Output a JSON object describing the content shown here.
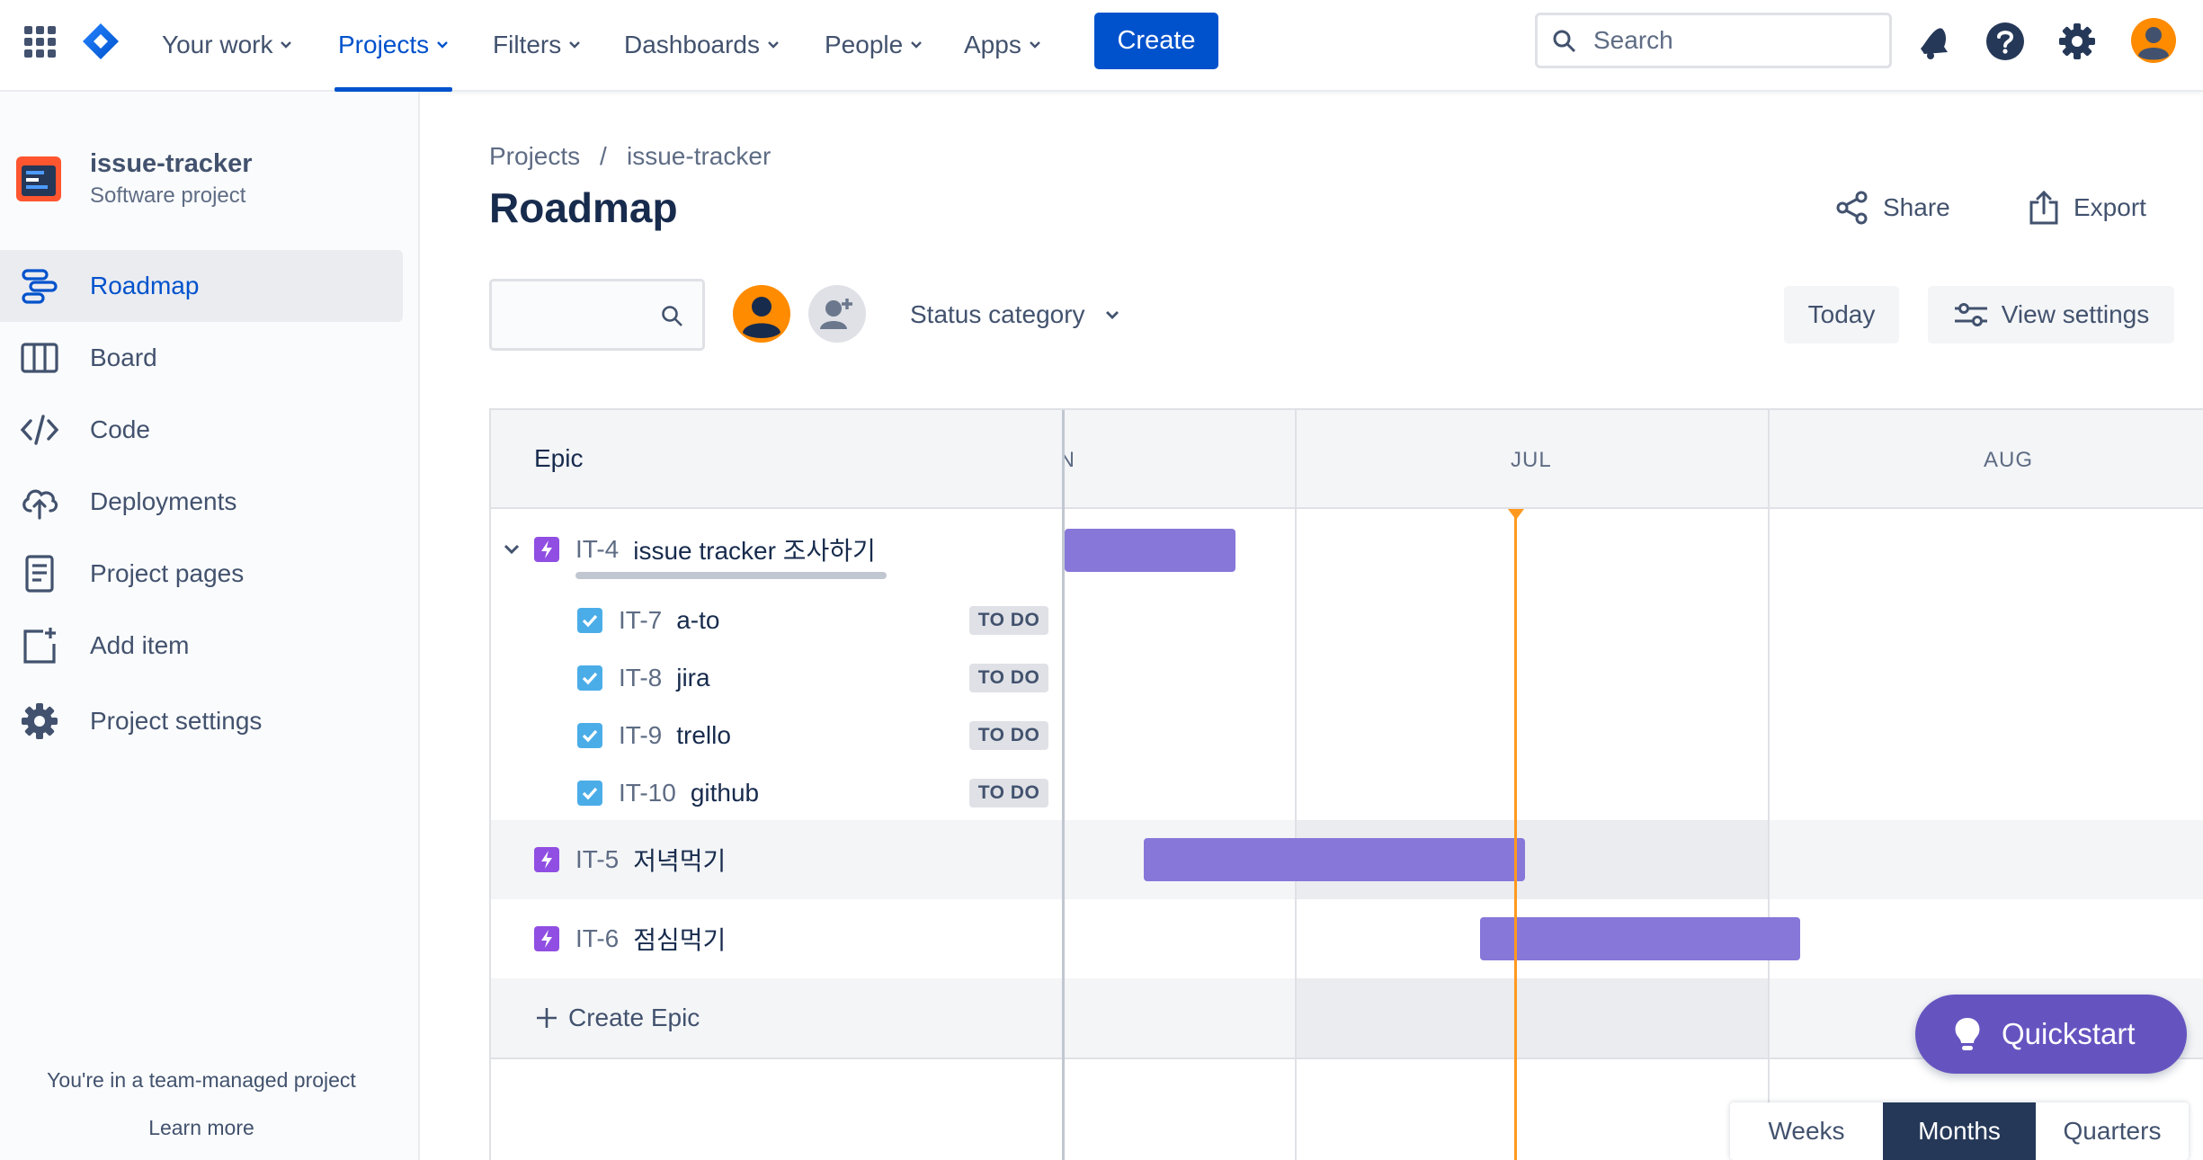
{
  "topnav": {
    "items": [
      "Your work",
      "Projects",
      "Filters",
      "Dashboards",
      "People",
      "Apps"
    ],
    "active": "Projects",
    "create_label": "Create",
    "search_placeholder": "Search"
  },
  "sidebar": {
    "project_name": "issue-tracker",
    "project_type": "Software project",
    "items": [
      {
        "label": "Roadmap",
        "icon": "roadmap-icon"
      },
      {
        "label": "Board",
        "icon": "board-icon"
      },
      {
        "label": "Code",
        "icon": "code-icon"
      },
      {
        "label": "Deployments",
        "icon": "cloud-upload-icon"
      },
      {
        "label": "Project pages",
        "icon": "page-icon"
      },
      {
        "label": "Add item",
        "icon": "add-item-icon"
      },
      {
        "label": "Project settings",
        "icon": "gear-icon"
      }
    ],
    "footer_text": "You're in a team-managed project",
    "footer_link": "Learn more"
  },
  "main": {
    "breadcrumb": [
      "Projects",
      "issue-tracker"
    ],
    "breadcrumb_sep": "/",
    "title": "Roadmap",
    "share_label": "Share",
    "export_label": "Export",
    "status_filter_label": "Status category",
    "today_label": "Today",
    "view_settings_label": "View settings"
  },
  "timeline": {
    "epic_header": "Epic",
    "months": [
      "JUN",
      "JUL",
      "AUG"
    ],
    "epics": [
      {
        "key": "IT-4",
        "title": "issue tracker 조사하기",
        "expanded": true,
        "children": [
          {
            "key": "IT-7",
            "title": "a-to",
            "status": "TO DO"
          },
          {
            "key": "IT-8",
            "title": "jira",
            "status": "TO DO"
          },
          {
            "key": "IT-9",
            "title": "trello",
            "status": "TO DO"
          },
          {
            "key": "IT-10",
            "title": "github",
            "status": "TO DO"
          }
        ]
      },
      {
        "key": "IT-5",
        "title": "저녁먹기"
      },
      {
        "key": "IT-6",
        "title": "점심먹기"
      }
    ],
    "create_epic_label": "Create Epic"
  },
  "quickstart_label": "Quickstart",
  "zoom": {
    "options": [
      "Weeks",
      "Months",
      "Quarters"
    ],
    "selected": "Months"
  },
  "colors": {
    "accent": "#0052cc",
    "epic_bar": "#8777d9",
    "today_line": "#ff991f",
    "epic_icon": "#904ee2",
    "quickstart": "#6554c0"
  }
}
